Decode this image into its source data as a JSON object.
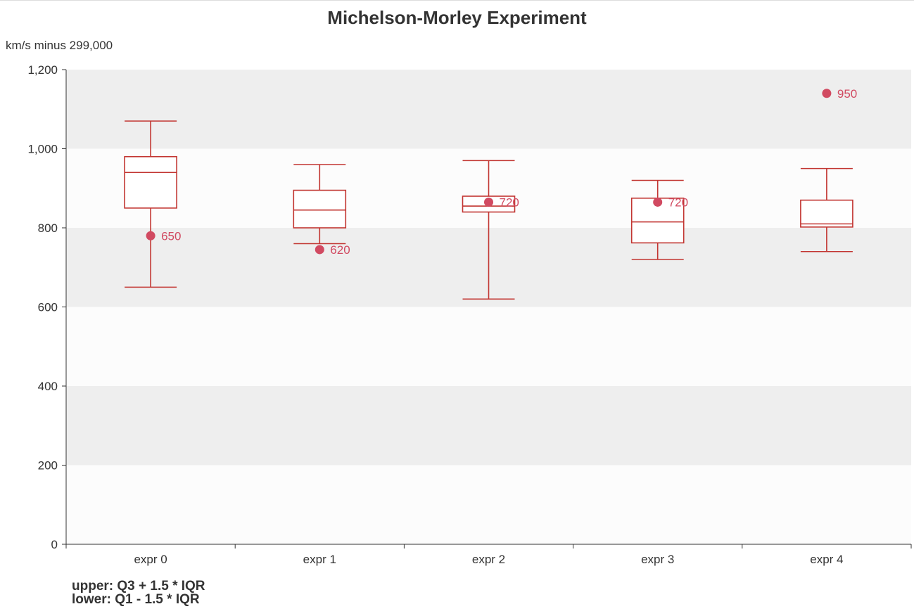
{
  "chart_data": {
    "type": "boxplot",
    "title": "Michelson-Morley Experiment",
    "ylabel": "km/s minus 299,000",
    "ylim": [
      0,
      1200
    ],
    "yticks": [
      0,
      200,
      400,
      600,
      800,
      1000,
      1200
    ],
    "ytick_labels": [
      "0",
      "200",
      "400",
      "600",
      "800",
      "1,000",
      "1,200"
    ],
    "categories": [
      "expr 0",
      "expr 1",
      "expr 2",
      "expr 3",
      "expr 4"
    ],
    "boxes": [
      {
        "low": 650,
        "q1": 850,
        "median": 940,
        "q3": 980,
        "high": 1070
      },
      {
        "low": 760,
        "q1": 800,
        "median": 845,
        "q3": 895,
        "high": 960
      },
      {
        "low": 620,
        "q1": 840,
        "median": 855,
        "q3": 880,
        "high": 970
      },
      {
        "low": 720,
        "q1": 762,
        "median": 815,
        "q3": 875,
        "high": 920
      },
      {
        "low": 740,
        "q1": 802,
        "median": 810,
        "q3": 870,
        "high": 950
      }
    ],
    "outliers": [
      {
        "category": 0,
        "y": 780,
        "label": "650"
      },
      {
        "category": 1,
        "y": 745,
        "label": "620"
      },
      {
        "category": 2,
        "y": 865,
        "label": "720"
      },
      {
        "category": 3,
        "y": 865,
        "label": "720"
      },
      {
        "category": 4,
        "y": 1140,
        "label": "950"
      }
    ],
    "grid": true,
    "split_area": true,
    "colors": {
      "box": "#c23531",
      "outlier": "#d14a61",
      "axis": "#333333",
      "band_dark": "#eeeeee",
      "band_light": "#fcfcfc"
    }
  },
  "footnote": {
    "line1": "upper: Q3 + 1.5 * IQR",
    "line2": "lower: Q1 - 1.5 * IQR"
  }
}
